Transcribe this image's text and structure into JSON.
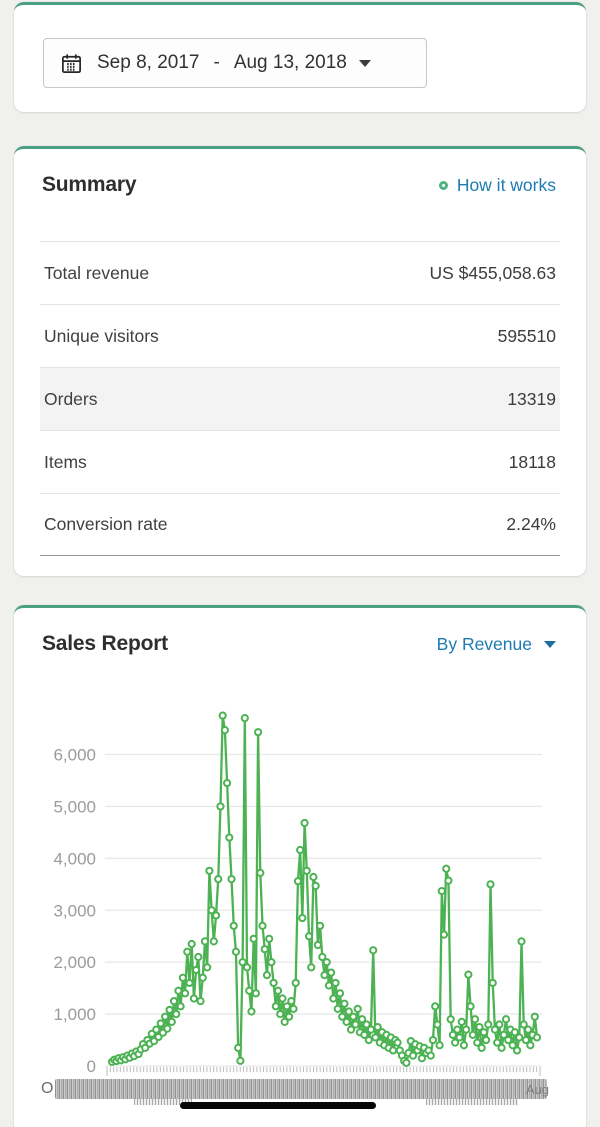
{
  "colors": {
    "accent_green": "#4db253",
    "card_top_border": "#4aa080",
    "link_blue": "#1d7ab2",
    "donut_icon_green": "#4fb382",
    "grid_gray": "#e8e8e8",
    "tick_gray": "#bcbcbc",
    "axis_label_gray": "#9b9b9b"
  },
  "date_picker": {
    "start": "Sep 8, 2017",
    "separator": "-",
    "end": "Aug 13, 2018"
  },
  "summary": {
    "title": "Summary",
    "help_link": "How it works",
    "rows": [
      {
        "label": "Total revenue",
        "value": "US $455,058.63"
      },
      {
        "label": "Unique visitors",
        "value": "595510"
      },
      {
        "label": "Orders",
        "value": "13319"
      },
      {
        "label": "Items",
        "value": "18118"
      },
      {
        "label": "Conversion rate",
        "value": "2.24%"
      }
    ]
  },
  "sales_report": {
    "title": "Sales Report",
    "metric_selector": "By Revenue"
  },
  "chart_data": {
    "type": "line",
    "title": "Sales Report",
    "series_name": "Revenue",
    "xlabel": "",
    "ylabel": "",
    "x_start": "Sep 8, 2017",
    "x_end": "Aug 13, 2018",
    "ylim": [
      0,
      6800
    ],
    "yticks": [
      0,
      1000,
      2000,
      3000,
      4000,
      5000,
      6000
    ],
    "ytick_labels": [
      "0",
      "1,000",
      "2,000",
      "3,000",
      "4,000",
      "5,000",
      "6,000"
    ],
    "grid": true,
    "legend": "none",
    "marker": "open-circle",
    "line_color": "#4db253",
    "x_axis_labels_overlap": true,
    "x_axis_overlap_fragments": {
      "left": "O",
      "right": "Aug"
    },
    "values": [
      80,
      120,
      95,
      150,
      110,
      170,
      130,
      200,
      160,
      240,
      190,
      280,
      230,
      320,
      420,
      350,
      500,
      430,
      620,
      480,
      700,
      560,
      820,
      640,
      950,
      720,
      1080,
      850,
      1250,
      1000,
      1450,
      1150,
      1700,
      1400,
      2200,
      1600,
      2350,
      1300,
      1850,
      2100,
      1250,
      1700,
      2400,
      1900,
      3760,
      3000,
      2400,
      2900,
      3600,
      5000,
      6750,
      6470,
      5450,
      4400,
      3600,
      2700,
      2200,
      350,
      100,
      2000,
      6700,
      1900,
      1450,
      1050,
      2450,
      1400,
      6430,
      3720,
      2700,
      2250,
      1750,
      2450,
      2000,
      1600,
      1150,
      1450,
      1000,
      1300,
      850,
      1150,
      950,
      1250,
      1100,
      1600,
      3560,
      4160,
      2850,
      4680,
      3760,
      2500,
      1900,
      3640,
      3470,
      2330,
      2700,
      2100,
      1750,
      2000,
      1550,
      1800,
      1300,
      1600,
      1100,
      1400,
      950,
      1200,
      850,
      1050,
      700,
      950,
      800,
      1100,
      650,
      900,
      600,
      800,
      500,
      700,
      2230,
      550,
      750,
      450,
      650,
      400,
      600,
      350,
      550,
      300,
      500,
      450,
      300,
      200,
      100,
      60,
      250,
      480,
      200,
      420,
      300,
      380,
      150,
      350,
      250,
      300,
      200,
      500,
      1150,
      800,
      400,
      3370,
      2530,
      3800,
      3570,
      900,
      600,
      450,
      700,
      550,
      850,
      400,
      700,
      1760,
      1150,
      600,
      900,
      450,
      750,
      350,
      650,
      500,
      800,
      3500,
      1600,
      700,
      450,
      800,
      350,
      600,
      900,
      500,
      700,
      400,
      650,
      300,
      550,
      2400,
      800,
      500,
      700,
      400,
      600,
      950,
      550
    ]
  }
}
